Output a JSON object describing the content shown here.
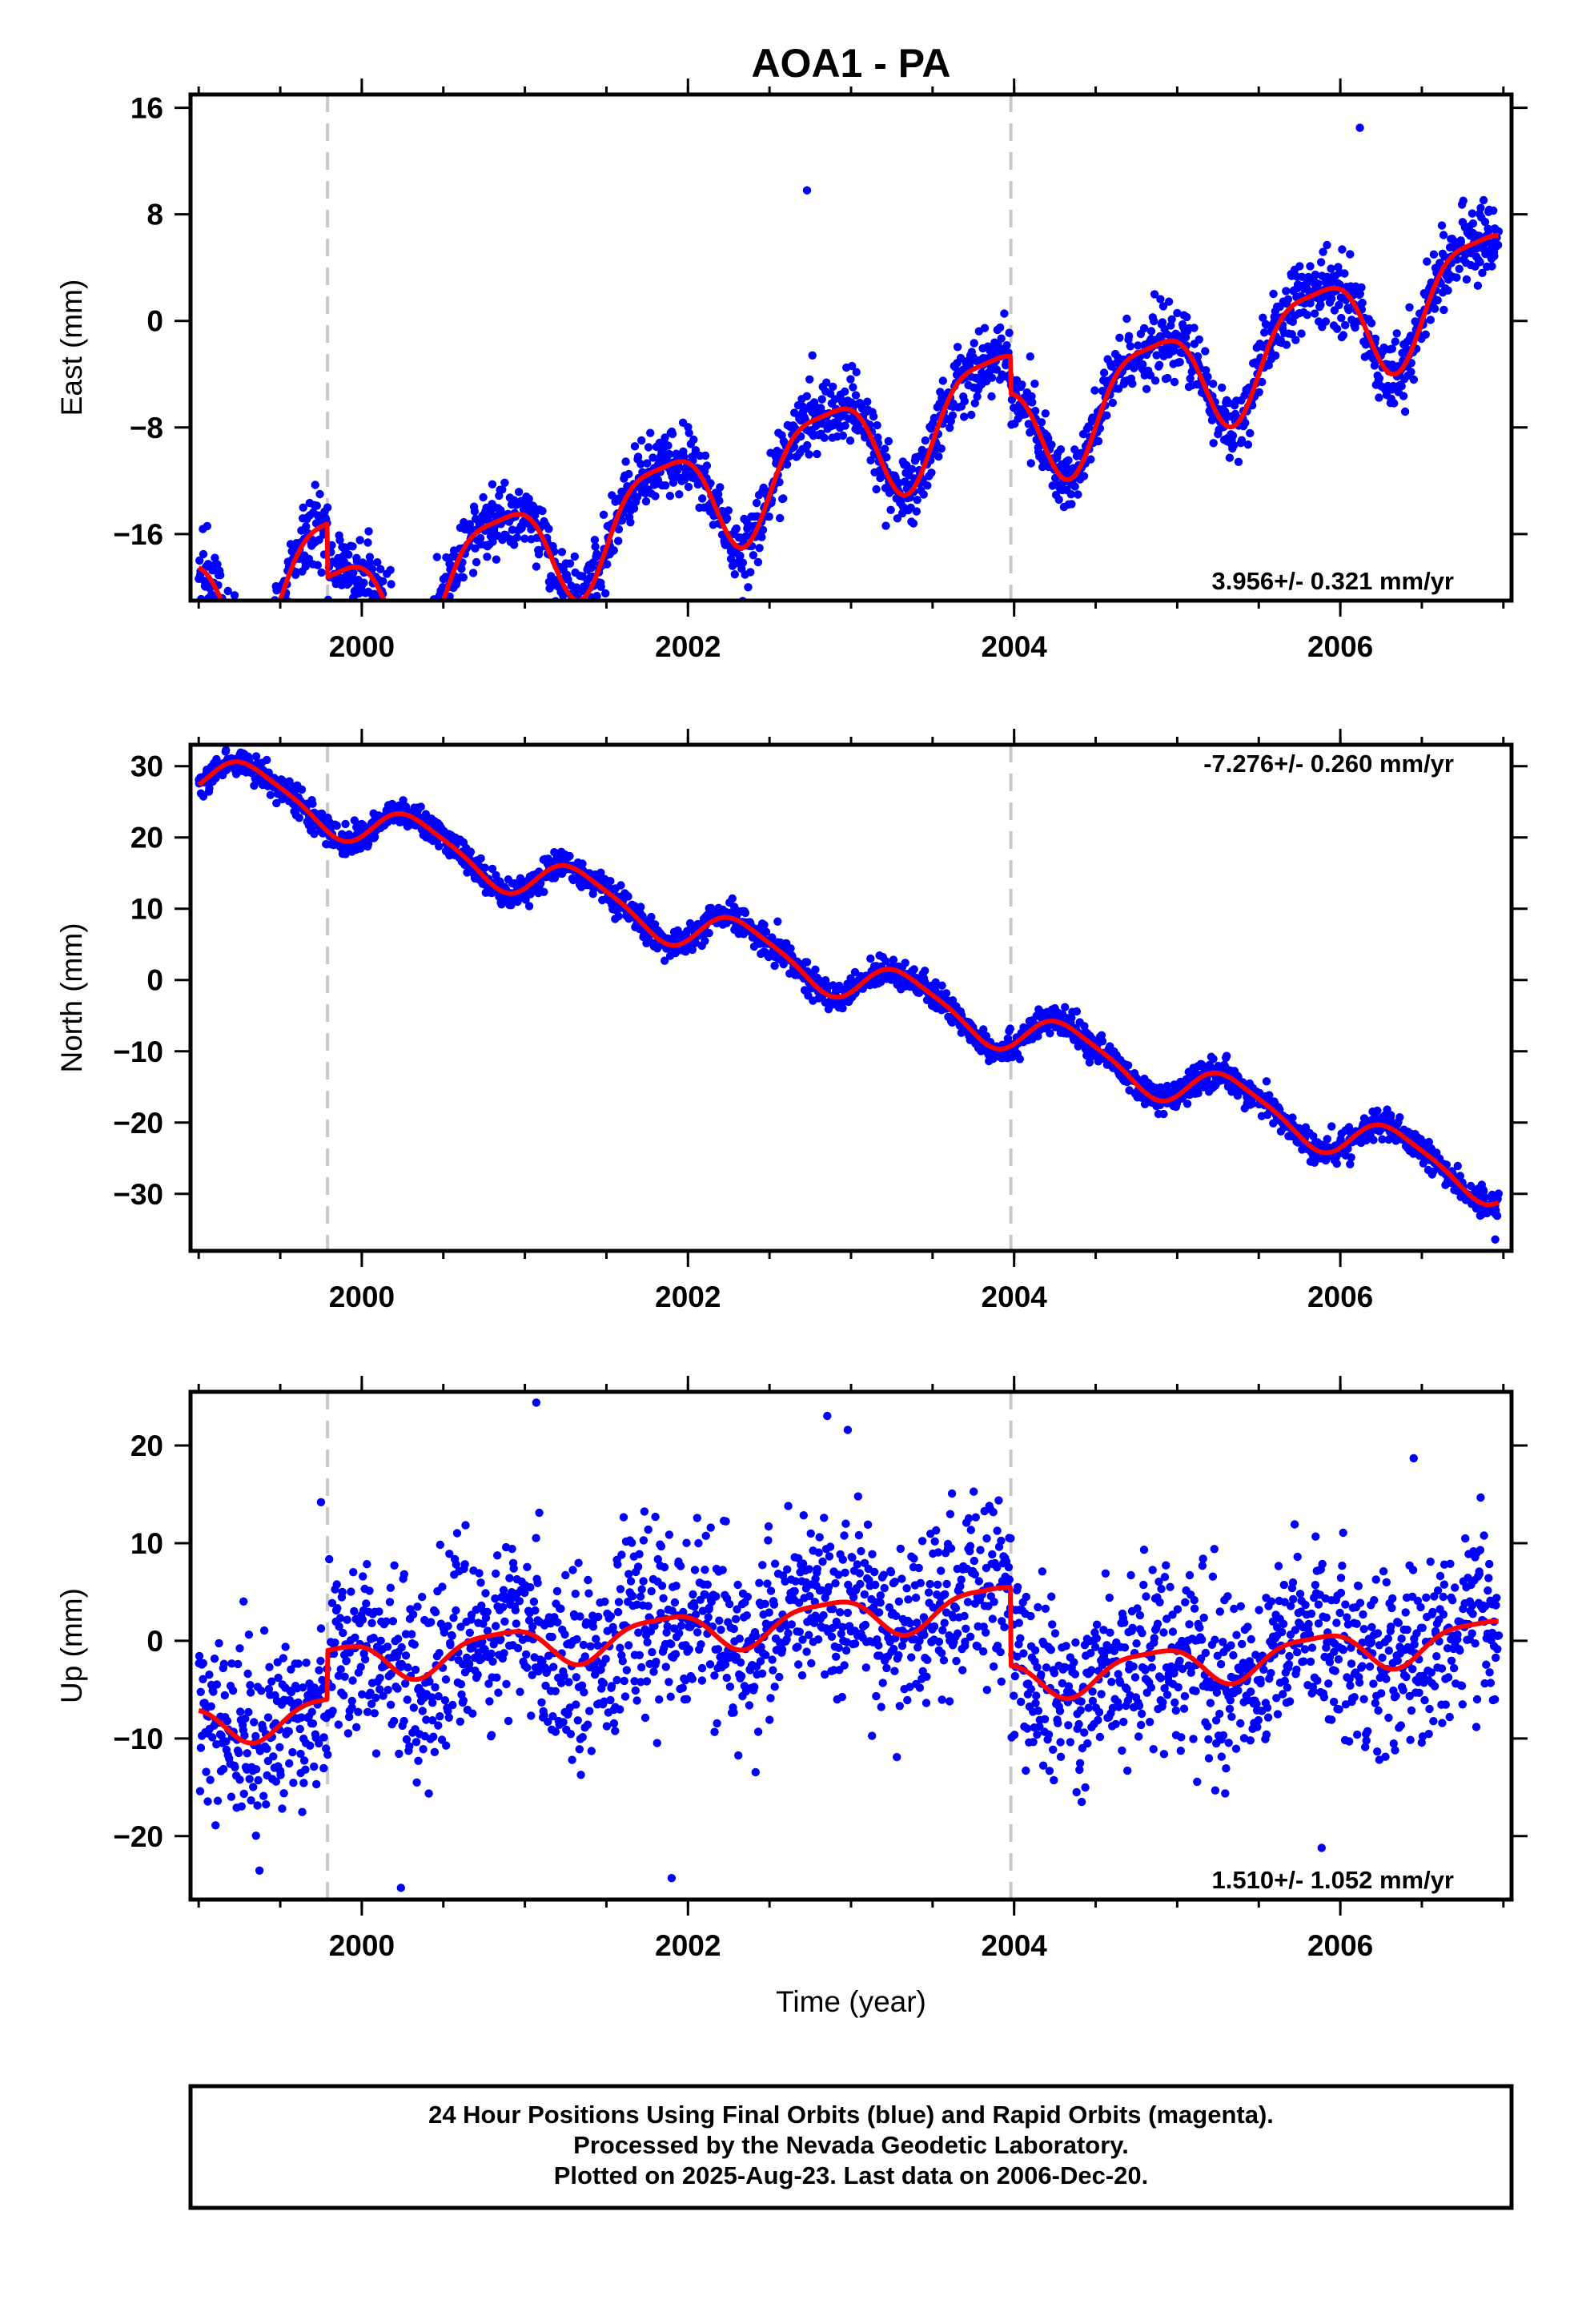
{
  "title": "AOA1 - PA",
  "footer": {
    "line1": "24 Hour Positions Using Final Orbits (blue) and Rapid Orbits (magenta).",
    "line2": "Processed by the Nevada Geodetic Laboratory.",
    "line3": "Plotted on 2025-Aug-23. Last data on 2006-Dec-20."
  },
  "colors": {
    "points": "#0000ff",
    "model": "#ff0000",
    "breaks": "#c8c8c8",
    "frame": "#000000"
  },
  "chart_data": [
    {
      "type": "scatter",
      "title": "",
      "xlabel": "",
      "ylabel": "East (mm)",
      "xlim": [
        1998.95,
        2007.05
      ],
      "ylim": [
        -21,
        17
      ],
      "xticks": [
        2000,
        2002,
        2004,
        2006
      ],
      "xtick_labels": [
        "2000",
        "2002",
        "2004",
        "2006"
      ],
      "yticks": [
        -16,
        -8,
        0,
        8,
        16
      ],
      "ytick_labels": [
        "−16",
        "−8",
        "0",
        "8",
        "16"
      ],
      "breaks": [
        1999.79,
        2003.98
      ],
      "rate_label": "3.956+/- 0.321 mm/yr",
      "rate_position": "bottom-right",
      "model": {
        "start": 1999.0,
        "end": 2006.97,
        "offset": -5.4,
        "rate": 3.956,
        "annual_sin": -3.3,
        "annual_cos": 2.2,
        "semi_sin": 0.9,
        "semi_cos": 0.5,
        "steps": [
          {
            "t": 1999.79,
            "size": -4.0
          },
          {
            "t": 2003.98,
            "size": -2.8
          }
        ]
      },
      "scatter_sd": 1.3,
      "outliers": [
        {
          "x": 1999.22,
          "y": -20.6
        },
        {
          "x": 2002.73,
          "y": 9.8
        },
        {
          "x": 2006.12,
          "y": 14.5
        }
      ]
    },
    {
      "type": "scatter",
      "title": "",
      "xlabel": "",
      "ylabel": "North (mm)",
      "xlim": [
        1998.95,
        2007.05
      ],
      "ylim": [
        -38,
        33
      ],
      "xticks": [
        2000,
        2002,
        2004,
        2006
      ],
      "xtick_labels": [
        "2000",
        "2002",
        "2004",
        "2006"
      ],
      "yticks": [
        -30,
        -20,
        -10,
        0,
        10,
        20,
        30
      ],
      "ytick_labels": [
        "−30",
        "−20",
        "−10",
        "0",
        "10",
        "20",
        "30"
      ],
      "breaks": [
        1999.79,
        2003.98
      ],
      "rate_label": "-7.276+/- 0.260 mm/yr",
      "rate_position": "top-right",
      "model": {
        "start": 1999.0,
        "end": 2006.97,
        "offset": 0.3,
        "rate": -7.276,
        "annual_sin": 2.6,
        "annual_cos": -1.6,
        "semi_sin": 0.5,
        "semi_cos": -0.4,
        "steps": []
      },
      "scatter_sd": 1.0,
      "outliers": [
        {
          "x": 2002.55,
          "y": 8.2
        },
        {
          "x": 2006.95,
          "y": -36.4
        }
      ]
    },
    {
      "type": "scatter",
      "title": "",
      "xlabel": "Time (year)",
      "ylabel": "Up (mm)",
      "xlim": [
        1998.95,
        2007.05
      ],
      "ylim": [
        -26.5,
        25.5
      ],
      "xticks": [
        2000,
        2002,
        2004,
        2006
      ],
      "xtick_labels": [
        "2000",
        "2002",
        "2004",
        "2006"
      ],
      "yticks": [
        -20,
        -10,
        0,
        10,
        20
      ],
      "ytick_labels": [
        "−20",
        "−10",
        "0",
        "10",
        "20"
      ],
      "breaks": [
        1999.79,
        2003.98
      ],
      "rate_label": "1.510+/- 1.052 mm/yr",
      "rate_position": "bottom-right",
      "model": {
        "start": 1999.0,
        "end": 2006.97,
        "offset": -2.5,
        "rate": 1.51,
        "annual_sin": -1.6,
        "annual_cos": 1.1,
        "semi_sin": 0.4,
        "semi_cos": 0.3,
        "steps": [
          {
            "t": 1999.79,
            "size": 5.0
          },
          {
            "t": 2003.98,
            "size": -8.0
          }
        ]
      },
      "scatter_sd": 4.5,
      "outliers": [
        {
          "x": 2001.07,
          "y": 24.4
        },
        {
          "x": 2000.24,
          "y": -25.3
        },
        {
          "x": 2001.9,
          "y": -24.3
        },
        {
          "x": 2002.98,
          "y": 21.6
        },
        {
          "x": 2006.45,
          "y": 18.7
        },
        {
          "x": 1999.75,
          "y": 14.2
        }
      ]
    }
  ]
}
